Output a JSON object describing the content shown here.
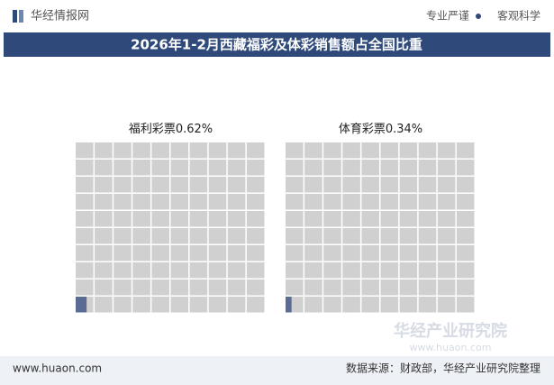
{
  "header": {
    "brand": "华经情报网",
    "slogans": [
      "专业严谨",
      "客观科学"
    ]
  },
  "chart_data": {
    "type": "waffle",
    "title": "2026年1-2月西藏福彩及体彩销售额占全国比重",
    "series": [
      {
        "name": "福利彩票",
        "color": "#5b6c94",
        "values": [
          0.62
        ],
        "value_labels": [
          "0.62%"
        ]
      },
      {
        "name": "体育彩票",
        "color": "#5b6c94",
        "values": [
          0.34
        ],
        "value_labels": [
          "0.34%"
        ]
      }
    ]
  },
  "watermark": {
    "name": "华经产业研究院",
    "url": "www.huaon.com"
  },
  "footer": {
    "website": "www.huaon.com",
    "source": "数据来源：财政部，华经产业研究院整理"
  }
}
